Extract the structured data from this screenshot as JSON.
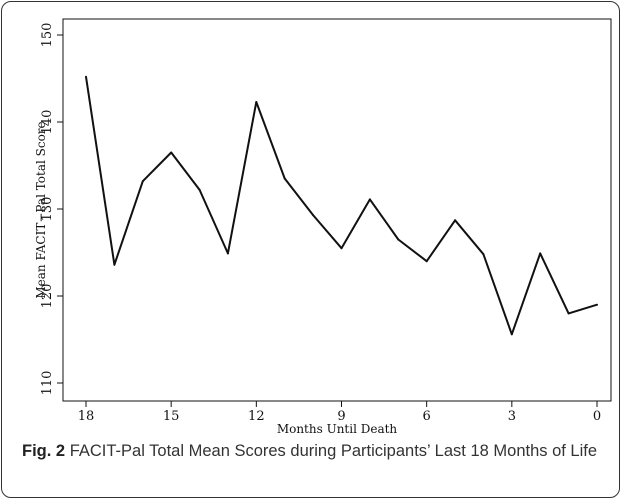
{
  "figure": {
    "label": "Fig. 2",
    "caption": "FACIT-Pal Total Mean Scores during Participants’ Last 18 Months of Life"
  },
  "chart_data": {
    "type": "line",
    "xlabel": "Months Until Death",
    "ylabel": "Mean FACIT−Pal Total Score",
    "x_reversed": true,
    "xlim": [
      18,
      0
    ],
    "ylim": [
      110,
      150
    ],
    "xticks": [
      "18",
      "15",
      "12",
      "9",
      "6",
      "3",
      "0"
    ],
    "yticks": [
      "110",
      "120",
      "130",
      "140",
      "150"
    ],
    "grid": false,
    "series": [
      {
        "x": [
          18,
          17,
          16,
          15,
          14,
          13,
          12,
          11,
          10,
          9,
          8,
          7,
          6,
          5,
          4,
          3,
          2,
          1,
          0
        ],
        "values": [
          145.2,
          123.6,
          133.2,
          136.5,
          132.2,
          124.9,
          142.3,
          133.5,
          129.3,
          125.5,
          131.1,
          126.5,
          124.0,
          128.7,
          124.8,
          115.6,
          124.9,
          118.0,
          119.0
        ]
      }
    ]
  }
}
